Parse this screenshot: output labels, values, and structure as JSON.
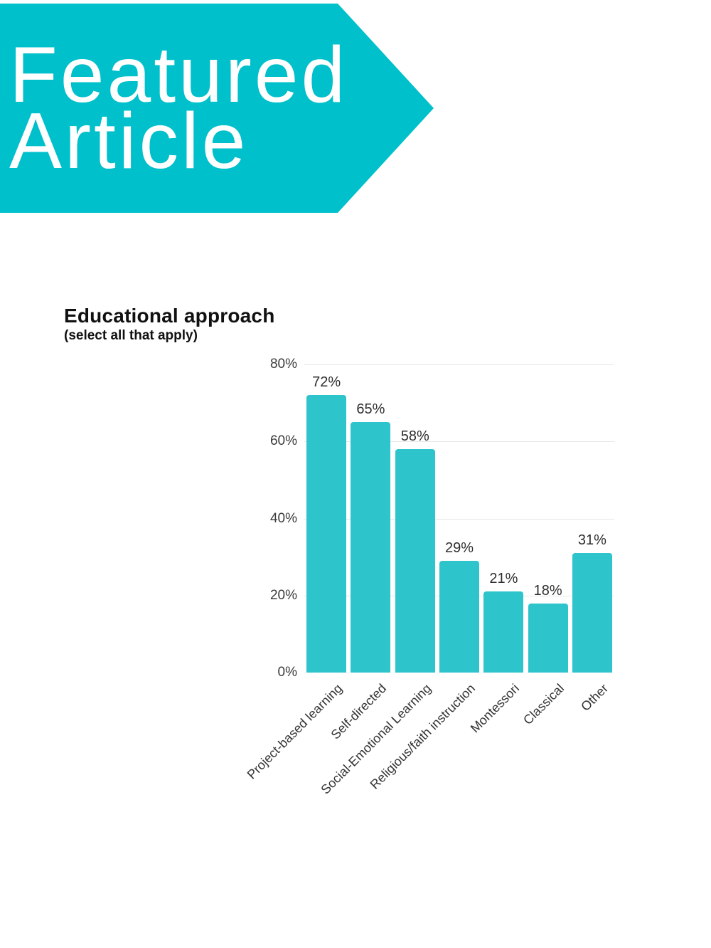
{
  "banner": {
    "line1": "Featured",
    "line2": "Article",
    "background_color": "#00c0cb",
    "text_color": "#ffffff"
  },
  "chart_data": {
    "type": "bar",
    "title": "Educational approach",
    "subtitle": "(select all that apply)",
    "categories": [
      "Project-based learning",
      "Self-directed",
      "Social-Emotional Learning",
      "Religious/faith instruction",
      "Montessori",
      "Classical",
      "Other"
    ],
    "values": [
      72,
      65,
      58,
      29,
      21,
      18,
      31
    ],
    "value_labels": [
      "72%",
      "65%",
      "58%",
      "29%",
      "21%",
      "18%",
      "31%"
    ],
    "xlabel": "",
    "ylabel": "",
    "ylim": [
      0,
      80
    ],
    "ytick_values": [
      0,
      20,
      40,
      60,
      80
    ],
    "ytick_labels": [
      "0%",
      "20%",
      "40%",
      "60%",
      "80%"
    ],
    "grid": true,
    "legend": false,
    "bar_color": "#2ec4cc",
    "grid_color": "#e7e7e7"
  }
}
